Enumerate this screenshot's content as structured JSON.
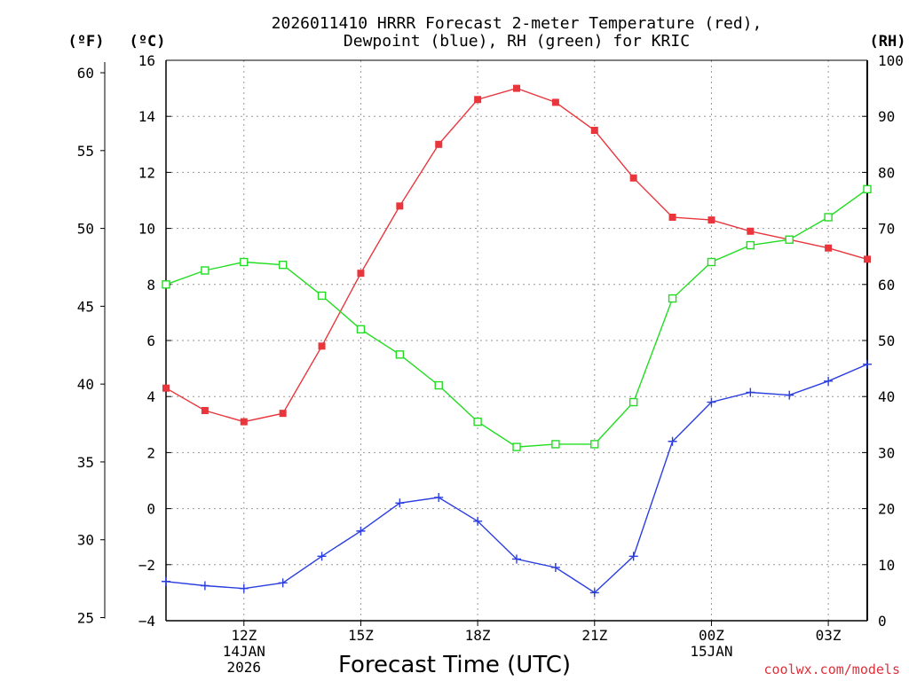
{
  "chart_data": {
    "type": "line",
    "title_lines": [
      "2026011410 HRRR Forecast 2-meter Temperature (red),",
      "Dewpoint (blue), RH (green) for KRIC"
    ],
    "xlabel": "Forecast Time (UTC)",
    "watermark": "coolwx.com/models",
    "x_hours": [
      10,
      11,
      12,
      13,
      14,
      15,
      16,
      17,
      18,
      19,
      20,
      21,
      22,
      23,
      24,
      25,
      26,
      27,
      28
    ],
    "x_ticks": [
      {
        "hour": 12,
        "lines": [
          "12Z",
          "14JAN",
          "2026"
        ]
      },
      {
        "hour": 15,
        "lines": [
          "15Z"
        ]
      },
      {
        "hour": 18,
        "lines": [
          "18Z"
        ]
      },
      {
        "hour": 21,
        "lines": [
          "21Z"
        ]
      },
      {
        "hour": 24,
        "lines": [
          "00Z",
          "15JAN"
        ]
      },
      {
        "hour": 27,
        "lines": [
          "03Z"
        ]
      }
    ],
    "axes": {
      "celsius": {
        "label": "(ºC)",
        "range": [
          -4,
          16
        ],
        "ticks": [
          "16",
          "14",
          "12",
          "10",
          "8",
          "6",
          "4",
          "2",
          "0",
          "−2",
          "−4"
        ]
      },
      "fahrenheit": {
        "label": "(ºF)",
        "ticks": [
          "60",
          "55",
          "50",
          "45",
          "40",
          "35",
          "30",
          "25"
        ]
      },
      "rh": {
        "label": "(RH)",
        "range": [
          0,
          100
        ],
        "ticks": [
          "100",
          "90",
          "80",
          "70",
          "60",
          "50",
          "40",
          "30",
          "20",
          "10",
          "0"
        ]
      }
    },
    "grid": true,
    "series": [
      {
        "name": "2-meter Temperature",
        "unit": "C",
        "color": "#e8363c",
        "marker": "filled-square",
        "values": [
          4.3,
          3.5,
          3.1,
          3.4,
          5.8,
          8.4,
          10.8,
          13.0,
          14.6,
          15.0,
          14.5,
          13.5,
          11.8,
          10.4,
          10.3,
          9.9,
          9.6,
          9.3,
          8.9
        ]
      },
      {
        "name": "Dewpoint",
        "unit": "C",
        "color": "#2a3ee0",
        "marker": "plus",
        "values": [
          -2.6,
          -2.75,
          -2.85,
          -2.65,
          -1.7,
          -0.8,
          0.2,
          0.4,
          -0.45,
          -1.8,
          -2.1,
          -3.0,
          -1.7,
          2.4,
          3.8,
          4.15,
          4.05,
          4.55,
          5.15
        ]
      },
      {
        "name": "RH",
        "unit": "%",
        "color": "#22dd22",
        "marker": "open-square",
        "values": [
          60,
          62.5,
          64,
          63.5,
          58,
          52,
          47.5,
          42,
          35.5,
          31,
          31.5,
          31.5,
          39,
          57.5,
          64,
          67,
          68,
          72,
          77
        ]
      }
    ]
  }
}
